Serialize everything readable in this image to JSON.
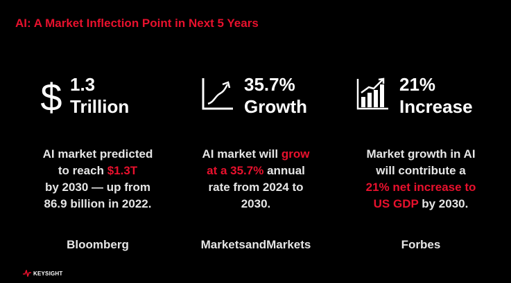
{
  "slide": {
    "title": "AI: A Market Inflection Point in Next 5 Years",
    "accent_color": "#e8112d",
    "text_color": "#ffffff"
  },
  "stats": [
    {
      "icon": "dollar-sign-icon",
      "value_line1": "1.3",
      "value_line2": "Trillion",
      "description": {
        "line1": "AI market predicted",
        "line2_plain": "to reach ",
        "line2_highlight": "$1.3T",
        "line3": "by 2030 — up from",
        "line4": "86.9 billion in 2022."
      },
      "source": "Bloomberg"
    },
    {
      "icon": "line-growth-chart-icon",
      "value_line1": "35.7%",
      "value_line2": "Growth",
      "description": {
        "line1_plain": "AI market will ",
        "line1_highlight": "grow",
        "line2_highlight": "at a 35.7%",
        "line2_plain": " annual",
        "line3": "rate from 2024 to",
        "line4": "2030."
      },
      "source": "MarketsandMarkets"
    },
    {
      "icon": "bar-chart-arrow-icon",
      "value_line1": "21%",
      "value_line2": "Increase",
      "description": {
        "line1": "Market growth in AI",
        "line2": "will contribute a",
        "line3_highlight": "21% net increase to",
        "line4_highlight": "US GDP",
        "line4_plain": " by 2030."
      },
      "source": "Forbes"
    }
  ],
  "footer": {
    "logo_text": "KEYSIGHT",
    "logo_icon": "keysight-wave-icon"
  }
}
